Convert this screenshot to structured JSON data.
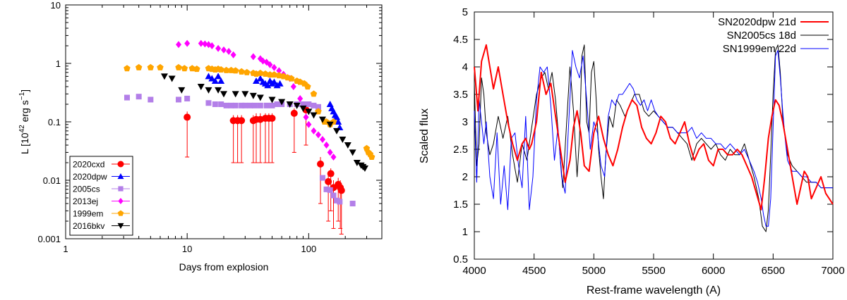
{
  "chart_data": [
    {
      "type": "scatter",
      "xlabel": "Days from explosion",
      "ylabel_main": "L [10",
      "ylabel_sup": "42",
      "ylabel_mid": " erg s",
      "ylabel_sup2": "−1",
      "ylabel_end": "]",
      "xscale": "log",
      "yscale": "log",
      "xlim": [
        1,
        400
      ],
      "ylim": [
        0.001,
        10
      ],
      "xticks": [
        1,
        10,
        100
      ],
      "xtick_labels": [
        "1",
        "10",
        "100"
      ],
      "yticks": [
        0.001,
        0.01,
        0.1,
        1,
        10
      ],
      "ytick_labels": [
        "0.001",
        "0.01",
        "0.1",
        "1",
        "10"
      ],
      "legend_position": "bottom-left",
      "series": [
        {
          "name": "2020cxd",
          "color": "#ff0000",
          "marker": "circle",
          "x": [
            10,
            24,
            26,
            28,
            35,
            37,
            40,
            44,
            47,
            50,
            76,
            95,
            125,
            145,
            152,
            160,
            175,
            182,
            186
          ],
          "y": [
            0.12,
            0.105,
            0.105,
            0.105,
            0.105,
            0.11,
            0.11,
            0.115,
            0.115,
            0.115,
            0.14,
            0.16,
            0.019,
            0.0095,
            0.013,
            0.0075,
            0.0085,
            0.0075,
            0.0067
          ],
          "ylo": [
            0.025,
            0.02,
            0.02,
            0.02,
            0.02,
            0.02,
            0.02,
            0.02,
            0.02,
            0.02,
            0.03,
            0.04,
            0.004,
            0.002,
            0.003,
            0.0015,
            0.002,
            0.0015,
            0.0012
          ],
          "yhi": [
            0.15,
            0.13,
            0.13,
            0.13,
            0.13,
            0.14,
            0.14,
            0.14,
            0.14,
            0.14,
            0.17,
            0.2,
            0.025,
            0.012,
            0.016,
            0.01,
            0.011,
            0.01,
            0.009
          ]
        },
        {
          "name": "2020dpw",
          "color": "#0000ff",
          "marker": "triangle",
          "x": [
            15,
            16,
            17,
            18,
            19,
            37,
            40,
            42,
            44,
            46,
            48,
            50,
            52,
            55,
            58,
            150,
            155,
            160,
            165,
            170,
            175,
            180
          ],
          "y": [
            0.6,
            0.55,
            0.5,
            0.6,
            0.5,
            0.5,
            0.55,
            0.48,
            0.45,
            0.42,
            0.5,
            0.45,
            0.48,
            0.42,
            0.45,
            0.2,
            0.17,
            0.15,
            0.13,
            0.12,
            0.1,
            0.08
          ],
          "ylo": null,
          "yhi": null
        },
        {
          "name": "2005cs",
          "color": "#b37fe8",
          "marker": "square",
          "x": [
            3.2,
            4,
            5,
            8.5,
            10,
            15,
            17,
            19,
            21,
            23,
            25,
            28,
            30,
            33,
            36,
            40,
            45,
            50,
            55,
            60,
            70,
            80,
            90,
            100,
            110,
            120,
            130,
            140,
            150,
            160,
            170,
            180,
            230
          ],
          "y": [
            0.26,
            0.27,
            0.24,
            0.24,
            0.25,
            0.21,
            0.2,
            0.2,
            0.19,
            0.19,
            0.19,
            0.19,
            0.19,
            0.19,
            0.19,
            0.19,
            0.19,
            0.19,
            0.2,
            0.2,
            0.2,
            0.2,
            0.2,
            0.2,
            0.19,
            0.18,
            0.011,
            0.007,
            0.0068,
            0.0055,
            0.0045,
            0.0043,
            0.004
          ],
          "ylo": null,
          "yhi": null
        },
        {
          "name": "2013ej",
          "color": "#ff00ff",
          "marker": "diamond",
          "x": [
            8.5,
            10,
            13,
            14,
            15,
            16,
            18,
            20,
            22,
            24,
            35,
            40,
            42,
            45,
            48,
            52,
            57,
            62,
            70,
            75,
            85,
            95,
            100,
            110,
            120,
            130,
            140,
            150,
            160
          ],
          "y": [
            2.1,
            2.2,
            2.2,
            2.15,
            2.1,
            2.0,
            1.8,
            1.7,
            1.6,
            1.4,
            1.3,
            1.2,
            1.1,
            1.05,
            0.95,
            0.85,
            0.75,
            0.65,
            0.55,
            0.4,
            0.25,
            0.12,
            0.09,
            0.07,
            0.06,
            0.05,
            0.04,
            0.03,
            0.025
          ],
          "ylo": null,
          "yhi": null
        },
        {
          "name": "1999em",
          "color": "#ffa500",
          "marker": "pentagon",
          "x": [
            3.2,
            4,
            5,
            6,
            8.5,
            9.5,
            11,
            12,
            15,
            16,
            17,
            18,
            19,
            21,
            23,
            25,
            28,
            31,
            35,
            37,
            40,
            44,
            48,
            52,
            57,
            62,
            67,
            72,
            80,
            85,
            92,
            98,
            110,
            120,
            135,
            140,
            150,
            160,
            300,
            310,
            320,
            330
          ],
          "y": [
            0.82,
            0.85,
            0.85,
            0.85,
            0.85,
            0.82,
            0.82,
            0.8,
            0.82,
            0.8,
            0.78,
            0.8,
            0.78,
            0.76,
            0.76,
            0.75,
            0.72,
            0.7,
            0.68,
            0.66,
            0.68,
            0.66,
            0.64,
            0.64,
            0.62,
            0.6,
            0.57,
            0.55,
            0.5,
            0.48,
            0.45,
            0.4,
            0.3,
            0.15,
            0.1,
            0.1,
            0.09,
            0.1,
            0.035,
            0.03,
            0.028,
            0.025
          ],
          "ylo": null,
          "yhi": null
        },
        {
          "name": "2016bkv",
          "color": "#000000",
          "marker": "triangle-down",
          "x": [
            6.5,
            7.5,
            9,
            13,
            15,
            18,
            20,
            25,
            30,
            35,
            40,
            50,
            60,
            70,
            80,
            90,
            100,
            110,
            130,
            150,
            170,
            190,
            210,
            230,
            250,
            270,
            280,
            290
          ],
          "y": [
            0.6,
            0.55,
            0.35,
            0.4,
            0.35,
            0.35,
            0.3,
            0.3,
            0.3,
            0.28,
            0.26,
            0.24,
            0.22,
            0.2,
            0.19,
            0.17,
            0.15,
            0.13,
            0.11,
            0.09,
            0.07,
            0.05,
            0.04,
            0.03,
            0.02,
            0.018,
            0.017,
            0.016
          ],
          "ylo": null,
          "yhi": null
        }
      ]
    },
    {
      "type": "line",
      "xlabel": "Rest-frame wavelength (A)",
      "ylabel": "Scaled flux",
      "xlim": [
        4000,
        7000
      ],
      "ylim": [
        0.5,
        5
      ],
      "xticks": [
        4000,
        4500,
        5000,
        5500,
        6000,
        6500,
        7000
      ],
      "yticks": [
        0.5,
        1,
        1.5,
        2,
        2.5,
        3,
        3.5,
        4,
        4.5,
        5
      ],
      "ytick_labels": [
        "0.5",
        "1",
        "1.5",
        "2",
        "2.5",
        "3",
        "3.5",
        "4",
        "4.5",
        "5"
      ],
      "legend_position": "top-right",
      "series": [
        {
          "name": "SN2020dpw 21d",
          "color": "#ff0000",
          "width": 2,
          "x": [
            4000,
            4030,
            4060,
            4100,
            4130,
            4160,
            4200,
            4240,
            4280,
            4320,
            4360,
            4400,
            4430,
            4460,
            4480,
            4520,
            4560,
            4600,
            4640,
            4680,
            4720,
            4760,
            4800,
            4830,
            4860,
            4890,
            4920,
            4960,
            5000,
            5040,
            5080,
            5120,
            5160,
            5200,
            5240,
            5280,
            5320,
            5360,
            5400,
            5440,
            5480,
            5520,
            5560,
            5600,
            5640,
            5680,
            5720,
            5760,
            5800,
            5840,
            5880,
            5920,
            5960,
            6000,
            6040,
            6080,
            6120,
            6160,
            6200,
            6240,
            6280,
            6320,
            6360,
            6400,
            6430,
            6460,
            6490,
            6520,
            6550,
            6580,
            6620,
            6660,
            6700,
            6730,
            6760,
            6790,
            6820,
            6860,
            6900,
            6940,
            6970,
            7000
          ],
          "y": [
            4.0,
            3.2,
            4.1,
            4.4,
            4.0,
            3.6,
            4.0,
            3.5,
            3.0,
            2.6,
            2.3,
            2.6,
            2.7,
            2.5,
            2.6,
            3.0,
            3.9,
            3.5,
            3.7,
            3.1,
            2.5,
            1.9,
            2.3,
            2.9,
            3.2,
            2.8,
            2.2,
            2.1,
            2.8,
            3.1,
            2.7,
            2.4,
            2.2,
            2.5,
            2.9,
            3.2,
            3.4,
            3.3,
            2.9,
            2.7,
            2.6,
            2.8,
            3.1,
            3.0,
            2.7,
            2.6,
            2.8,
            3.0,
            2.6,
            2.3,
            2.5,
            2.6,
            2.3,
            2.2,
            2.5,
            2.5,
            2.4,
            2.4,
            2.5,
            2.4,
            2.2,
            2.0,
            1.7,
            1.4,
            2.0,
            2.7,
            3.1,
            3.4,
            3.3,
            3.0,
            2.5,
            2.0,
            1.5,
            1.8,
            2.1,
            2.0,
            1.6,
            1.8,
            2.0,
            1.7,
            1.6,
            1.5
          ]
        },
        {
          "name": "SN2005cs 18d",
          "color": "#000000",
          "width": 1,
          "x": [
            4000,
            4020,
            4040,
            4060,
            4080,
            4100,
            4130,
            4160,
            4200,
            4240,
            4280,
            4320,
            4360,
            4400,
            4440,
            4480,
            4520,
            4560,
            4590,
            4620,
            4650,
            4680,
            4710,
            4740,
            4770,
            4800,
            4830,
            4860,
            4880,
            4900,
            4920,
            4940,
            4960,
            4980,
            5000,
            5020,
            5040,
            5060,
            5080,
            5100,
            5130,
            5160,
            5190,
            5220,
            5260,
            5300,
            5340,
            5380,
            5420,
            5460,
            5500,
            5540,
            5580,
            5620,
            5660,
            5700,
            5740,
            5780,
            5820,
            5860,
            5900,
            5940,
            5980,
            6020,
            6060,
            6100,
            6140,
            6180,
            6220,
            6260,
            6300,
            6340,
            6380,
            6410,
            6440,
            6460,
            6480,
            6500,
            6520,
            6540,
            6560,
            6580,
            6620,
            6660,
            6700,
            6740,
            6780,
            6820,
            6860,
            6900,
            6940,
            6970,
            7000
          ],
          "y": [
            3.7,
            2.2,
            2.6,
            3.8,
            3.5,
            2.8,
            2.4,
            2.6,
            3.1,
            2.7,
            3.1,
            2.4,
            1.9,
            2.6,
            2.3,
            2.9,
            3.5,
            3.8,
            3.9,
            3.6,
            3.9,
            3.4,
            2.6,
            1.8,
            2.9,
            4.0,
            3.2,
            2.0,
            2.7,
            4.2,
            4.4,
            3.0,
            2.8,
            3.9,
            4.1,
            3.4,
            2.5,
            2.0,
            1.6,
            2.4,
            3.1,
            2.9,
            3.4,
            3.3,
            3.1,
            3.3,
            3.5,
            3.5,
            3.2,
            3.1,
            3.2,
            3.1,
            3.0,
            2.9,
            2.9,
            2.8,
            2.7,
            2.6,
            2.3,
            2.6,
            2.7,
            2.6,
            2.5,
            2.6,
            2.4,
            2.3,
            2.5,
            2.4,
            2.4,
            2.6,
            2.3,
            2.0,
            1.6,
            1.1,
            1.0,
            1.4,
            2.4,
            3.5,
            4.3,
            4.4,
            3.9,
            3.1,
            2.4,
            2.2,
            2.1,
            2.0,
            1.9,
            1.9,
            1.9,
            1.8,
            1.8,
            1.8,
            1.8
          ]
        },
        {
          "name": "SN1999em 22d",
          "color": "#0000ff",
          "width": 1,
          "x": [
            4000,
            4020,
            4040,
            4060,
            4080,
            4100,
            4130,
            4160,
            4190,
            4220,
            4250,
            4280,
            4310,
            4340,
            4370,
            4400,
            4430,
            4460,
            4490,
            4520,
            4550,
            4580,
            4610,
            4640,
            4670,
            4700,
            4730,
            4760,
            4790,
            4820,
            4850,
            4880,
            4910,
            4940,
            4970,
            5000,
            5030,
            5060,
            5090,
            5120,
            5150,
            5180,
            5210,
            5240,
            5270,
            5300,
            5330,
            5360,
            5390,
            5420,
            5450,
            5480,
            5510,
            5540,
            5580,
            5620,
            5660,
            5700,
            5740,
            5780,
            5820,
            5860,
            5900,
            5940,
            5980,
            6020,
            6060,
            6100,
            6140,
            6180,
            6220,
            6260,
            6300,
            6340,
            6370,
            6400,
            6420,
            6440,
            6460,
            6480,
            6500,
            6520,
            6540,
            6560,
            6580,
            6600,
            6620,
            6660,
            6700,
            6740,
            6780,
            6820,
            6860,
            6900,
            6940,
            6970,
            7000
          ],
          "y": [
            3.2,
            1.9,
            3.4,
            3.0,
            2.6,
            3.0,
            2.0,
            1.6,
            2.8,
            1.5,
            2.2,
            1.4,
            2.7,
            2.8,
            2.2,
            1.8,
            3.1,
            1.4,
            2.0,
            3.4,
            4.0,
            3.9,
            4.0,
            3.3,
            2.3,
            2.9,
            2.0,
            1.7,
            3.0,
            4.3,
            4.0,
            3.8,
            4.2,
            3.4,
            2.5,
            3.0,
            2.8,
            2.2,
            2.0,
            3.1,
            3.4,
            3.3,
            3.5,
            3.5,
            3.6,
            3.7,
            3.6,
            3.4,
            3.3,
            3.4,
            3.2,
            3.4,
            3.2,
            3.1,
            3.0,
            2.9,
            2.9,
            2.8,
            2.8,
            2.8,
            2.9,
            2.7,
            2.8,
            2.7,
            2.7,
            2.6,
            2.6,
            2.5,
            2.6,
            2.5,
            2.4,
            2.5,
            2.3,
            2.1,
            1.9,
            1.6,
            1.3,
            1.1,
            1.1,
            1.6,
            2.9,
            4.2,
            4.3,
            3.8,
            3.2,
            2.7,
            2.3,
            2.1,
            2.1,
            2.0,
            2.0,
            1.9,
            1.9,
            1.8,
            1.8,
            1.8,
            1.8
          ]
        }
      ]
    }
  ]
}
